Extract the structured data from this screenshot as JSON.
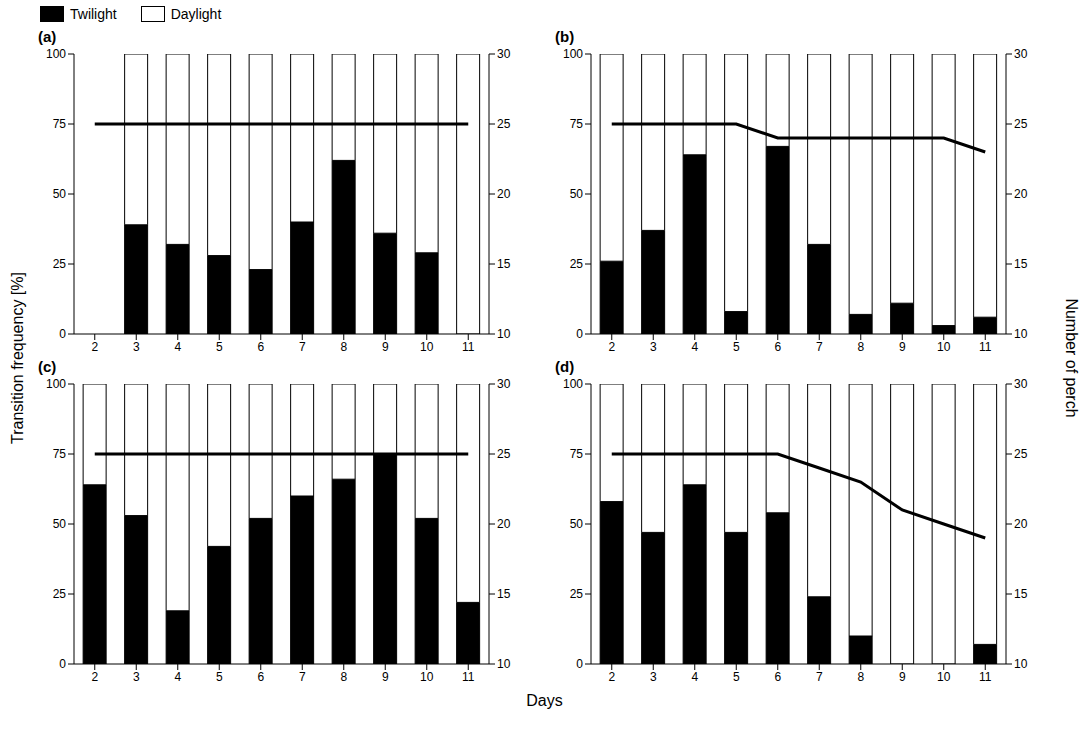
{
  "x_label": "Days",
  "y_label": "Transition frequency [%]",
  "y2_label": "Number of perch",
  "legend": "top-left",
  "chart_data": [
    {
      "type": "bar",
      "title": "(a)",
      "stacked": true,
      "categories": [
        "2",
        "3",
        "4",
        "5",
        "6",
        "7",
        "8",
        "9",
        "10",
        "11"
      ],
      "ylim": [
        0,
        100
      ],
      "yticks": [
        0,
        25,
        50,
        75,
        100
      ],
      "y2lim": [
        10,
        30
      ],
      "y2ticks": [
        10,
        15,
        20,
        25,
        30
      ],
      "series": [
        {
          "name": "Twilight",
          "color": "#000000",
          "values": [
            null,
            39,
            32,
            28,
            23,
            40,
            62,
            36,
            29,
            0
          ]
        },
        {
          "name": "Daylight",
          "color": "#ffffff",
          "values": [
            null,
            61,
            68,
            72,
            77,
            60,
            38,
            64,
            71,
            100
          ]
        },
        {
          "name": "Number of perch",
          "type": "line",
          "axis": "y2",
          "color": "#000000",
          "values": [
            25,
            25,
            25,
            25,
            25,
            25,
            25,
            25,
            25,
            25
          ]
        }
      ]
    },
    {
      "type": "bar",
      "title": "(b)",
      "stacked": true,
      "categories": [
        "2",
        "3",
        "4",
        "5",
        "6",
        "7",
        "8",
        "9",
        "10",
        "11"
      ],
      "ylim": [
        0,
        100
      ],
      "yticks": [
        0,
        25,
        50,
        75,
        100
      ],
      "y2lim": [
        10,
        30
      ],
      "y2ticks": [
        10,
        15,
        20,
        25,
        30
      ],
      "series": [
        {
          "name": "Twilight",
          "color": "#000000",
          "values": [
            26,
            37,
            64,
            8,
            67,
            32,
            7,
            11,
            3,
            6
          ]
        },
        {
          "name": "Daylight",
          "color": "#ffffff",
          "values": [
            74,
            63,
            36,
            92,
            33,
            68,
            93,
            89,
            97,
            94
          ]
        },
        {
          "name": "Number of perch",
          "type": "line",
          "axis": "y2",
          "color": "#000000",
          "values": [
            25,
            25,
            25,
            25,
            24,
            24,
            24,
            24,
            24,
            23
          ]
        }
      ]
    },
    {
      "type": "bar",
      "title": "(c)",
      "stacked": true,
      "categories": [
        "2",
        "3",
        "4",
        "5",
        "6",
        "7",
        "8",
        "9",
        "10",
        "11"
      ],
      "ylim": [
        0,
        100
      ],
      "yticks": [
        0,
        25,
        50,
        75,
        100
      ],
      "y2lim": [
        10,
        30
      ],
      "y2ticks": [
        10,
        15,
        20,
        25,
        30
      ],
      "series": [
        {
          "name": "Twilight",
          "color": "#000000",
          "values": [
            64,
            53,
            19,
            42,
            52,
            60,
            66,
            75,
            52,
            22
          ]
        },
        {
          "name": "Daylight",
          "color": "#ffffff",
          "values": [
            36,
            47,
            81,
            58,
            48,
            40,
            34,
            25,
            48,
            78
          ]
        },
        {
          "name": "Number of perch",
          "type": "line",
          "axis": "y2",
          "color": "#000000",
          "values": [
            25,
            25,
            25,
            25,
            25,
            25,
            25,
            25,
            25,
            25
          ]
        }
      ]
    },
    {
      "type": "bar",
      "title": "(d)",
      "stacked": true,
      "categories": [
        "2",
        "3",
        "4",
        "5",
        "6",
        "7",
        "8",
        "9",
        "10",
        "11"
      ],
      "ylim": [
        0,
        100
      ],
      "yticks": [
        0,
        25,
        50,
        75,
        100
      ],
      "y2lim": [
        10,
        30
      ],
      "y2ticks": [
        10,
        15,
        20,
        25,
        30
      ],
      "series": [
        {
          "name": "Twilight",
          "color": "#000000",
          "values": [
            58,
            47,
            64,
            47,
            54,
            24,
            10,
            0,
            0,
            7
          ]
        },
        {
          "name": "Daylight",
          "color": "#ffffff",
          "values": [
            42,
            53,
            36,
            53,
            46,
            76,
            90,
            100,
            100,
            93
          ]
        },
        {
          "name": "Number of perch",
          "type": "line",
          "axis": "y2",
          "color": "#000000",
          "values": [
            25,
            25,
            25,
            25,
            25,
            24,
            23,
            21,
            20,
            19
          ]
        }
      ]
    }
  ]
}
